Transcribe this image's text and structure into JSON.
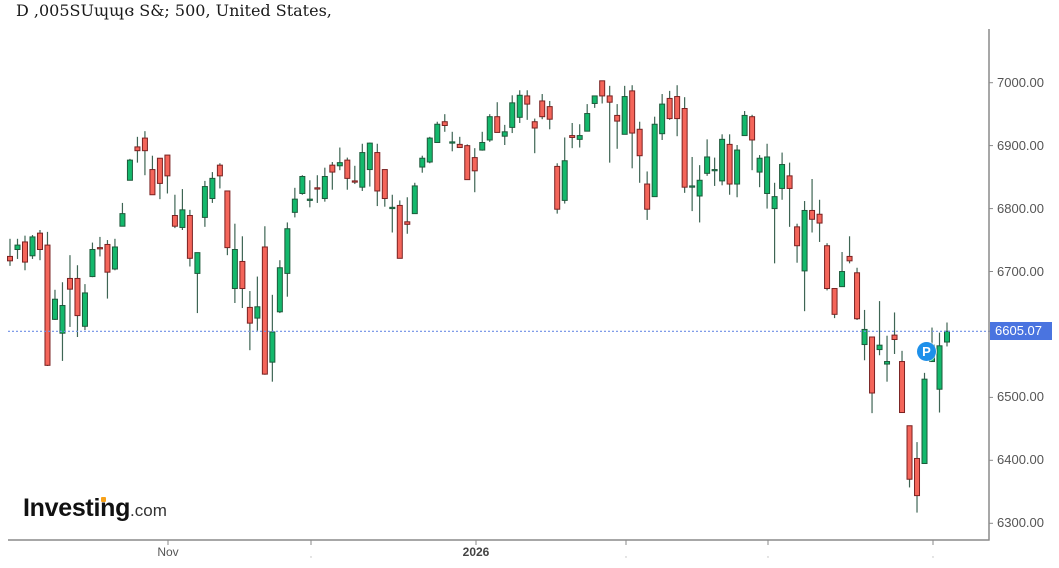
{
  "header": {
    "title": "D ,005SUɰɰɞ S&; 500, United States,"
  },
  "logo": {
    "brand": "Investing",
    "suffix": ".com",
    "accent": "#f7a11a"
  },
  "y_axis": {
    "labels": [
      "7000.00",
      "6900.00",
      "6800.00",
      "6700.00",
      "6500.00",
      "6400.00",
      "6300.00"
    ]
  },
  "x_axis": {
    "labels": [
      "Nov",
      "2026"
    ]
  },
  "price_marker": {
    "label": "6605.07",
    "value": 6605.07,
    "color": "#4a74e0"
  },
  "annotation": {
    "label": "P",
    "color": "#1e90ea"
  },
  "colors": {
    "up_fill": "#14b86c",
    "up_stroke": "#1d5a3b",
    "down_fill": "#f4655a",
    "down_stroke": "#7a2222",
    "wick": "#3e6554",
    "axis": "#8a8a8a",
    "price_line": "#6f8fe6"
  },
  "chart_data": {
    "type": "candlestick",
    "title": "S&P 500, United States, D",
    "xlabel": "",
    "ylabel": "",
    "ylim": [
      6300,
      7000
    ],
    "y_ticks": [
      6300,
      6400,
      6500,
      6600,
      6700,
      6800,
      6900,
      7000
    ],
    "x_tick_labels": [
      "Nov",
      "",
      "2026",
      "",
      "",
      ""
    ],
    "last_price": 6605.07,
    "grid": false,
    "legend": null,
    "ohlc_fields": [
      "open",
      "high",
      "low",
      "close"
    ],
    "candles": [
      [
        6724,
        6752,
        6709,
        6717
      ],
      [
        6735,
        6752,
        6720,
        6742
      ],
      [
        6747,
        6757,
        6702,
        6715
      ],
      [
        6725,
        6758,
        6720,
        6755
      ],
      [
        6761,
        6766,
        6718,
        6735
      ],
      [
        6742,
        6763,
        6550,
        6551
      ],
      [
        6624,
        6671,
        6623,
        6656
      ],
      [
        6602,
        6683,
        6558,
        6646
      ],
      [
        6689,
        6726,
        6612,
        6672
      ],
      [
        6689,
        6710,
        6596,
        6630
      ],
      [
        6613,
        6680,
        6607,
        6666
      ],
      [
        6692,
        6746,
        6691,
        6735
      ],
      [
        6738,
        6755,
        6724,
        6736
      ],
      [
        6743,
        6750,
        6657,
        6699
      ],
      [
        6704,
        6752,
        6702,
        6739
      ],
      [
        6772,
        6809,
        6772,
        6792
      ],
      [
        6845,
        6879,
        6845,
        6877
      ],
      [
        6898,
        6914,
        6873,
        6892
      ],
      [
        6912,
        6923,
        6853,
        6892
      ],
      [
        6862,
        6884,
        6822,
        6822
      ],
      [
        6880,
        6880,
        6815,
        6840
      ],
      [
        6885,
        6885,
        6824,
        6852
      ],
      [
        6789,
        6822,
        6769,
        6772
      ],
      [
        6770,
        6831,
        6766,
        6798
      ],
      [
        6789,
        6798,
        6708,
        6721
      ],
      [
        6697,
        6730,
        6634,
        6730
      ],
      [
        6786,
        6844,
        6771,
        6835
      ],
      [
        6816,
        6858,
        6809,
        6848
      ],
      [
        6869,
        6872,
        6832,
        6852
      ],
      [
        6828,
        6828,
        6726,
        6738
      ],
      [
        6673,
        6776,
        6650,
        6735
      ],
      [
        6716,
        6756,
        6642,
        6673
      ],
      [
        6643,
        6669,
        6575,
        6618
      ],
      [
        6626,
        6692,
        6606,
        6644
      ],
      [
        6739,
        6772,
        6536,
        6537
      ],
      [
        6556,
        6663,
        6525,
        6604
      ],
      [
        6636,
        6718,
        6634,
        6706
      ],
      [
        6697,
        6778,
        6660,
        6768
      ],
      [
        6794,
        6833,
        6786,
        6815
      ],
      [
        6824,
        6853,
        6822,
        6851
      ],
      [
        6813,
        6845,
        6802,
        6815
      ],
      [
        6833,
        6853,
        6809,
        6831
      ],
      [
        6816,
        6865,
        6811,
        6851
      ],
      [
        6869,
        6874,
        6830,
        6858
      ],
      [
        6868,
        6897,
        6861,
        6873
      ],
      [
        6877,
        6881,
        6830,
        6848
      ],
      [
        6844,
        6868,
        6839,
        6842
      ],
      [
        6834,
        6903,
        6828,
        6889
      ],
      [
        6862,
        6905,
        6835,
        6904
      ],
      [
        6889,
        6903,
        6804,
        6828
      ],
      [
        6862,
        6862,
        6803,
        6816
      ],
      [
        6800,
        6822,
        6762,
        6802
      ],
      [
        6805,
        6813,
        6721,
        6721
      ],
      [
        6779,
        6818,
        6760,
        6775
      ],
      [
        6792,
        6841,
        6792,
        6836
      ],
      [
        6866,
        6884,
        6857,
        6880
      ],
      [
        6874,
        6914,
        6872,
        6912
      ],
      [
        6905,
        6938,
        6905,
        6934
      ],
      [
        6938,
        6950,
        6922,
        6932
      ],
      [
        6904,
        6922,
        6891,
        6906
      ],
      [
        6902,
        6914,
        6897,
        6897
      ],
      [
        6900,
        6902,
        6846,
        6846
      ],
      [
        6881,
        6896,
        6826,
        6860
      ],
      [
        6893,
        6922,
        6892,
        6905
      ],
      [
        6909,
        6950,
        6906,
        6946
      ],
      [
        6946,
        6969,
        6921,
        6921
      ],
      [
        6915,
        6933,
        6901,
        6922
      ],
      [
        6929,
        6980,
        6920,
        6968
      ],
      [
        6945,
        6988,
        6936,
        6980
      ],
      [
        6979,
        6988,
        6941,
        6966
      ],
      [
        6938,
        6943,
        6888,
        6928
      ],
      [
        6971,
        6982,
        6942,
        6946
      ],
      [
        6962,
        6971,
        6926,
        6942
      ],
      [
        6867,
        6872,
        6792,
        6799
      ],
      [
        6813,
        6913,
        6808,
        6876
      ],
      [
        6916,
        6936,
        6896,
        6913
      ],
      [
        6910,
        6934,
        6897,
        6916
      ],
      [
        6923,
        6966,
        6923,
        6951
      ],
      [
        6967,
        6979,
        6960,
        6979
      ],
      [
        7003,
        7003,
        6967,
        6979
      ],
      [
        6979,
        6995,
        6873,
        6969
      ],
      [
        6948,
        6966,
        6895,
        6939
      ],
      [
        6918,
        6995,
        6918,
        6978
      ],
      [
        6987,
        6996,
        6864,
        6920
      ],
      [
        6926,
        6938,
        6841,
        6884
      ],
      [
        6839,
        6859,
        6782,
        6799
      ],
      [
        6819,
        6946,
        6819,
        6934
      ],
      [
        6919,
        6982,
        6909,
        6966
      ],
      [
        6975,
        6987,
        6941,
        6943
      ],
      [
        6978,
        6996,
        6915,
        6943
      ],
      [
        6959,
        6977,
        6825,
        6834
      ],
      [
        6834,
        6882,
        6796,
        6836
      ],
      [
        6820,
        6869,
        6778,
        6845
      ],
      [
        6856,
        6910,
        6852,
        6882
      ],
      [
        6861,
        6881,
        6836,
        6862
      ],
      [
        6844,
        6918,
        6837,
        6910
      ],
      [
        6902,
        6918,
        6822,
        6839
      ],
      [
        6839,
        6901,
        6818,
        6893
      ],
      [
        6916,
        6955,
        6916,
        6948
      ],
      [
        6946,
        6949,
        6861,
        6909
      ],
      [
        6858,
        6885,
        6834,
        6880
      ],
      [
        6824,
        6903,
        6800,
        6882
      ],
      [
        6800,
        6841,
        6713,
        6819
      ],
      [
        6832,
        6889,
        6814,
        6870
      ],
      [
        6852,
        6873,
        6771,
        6832
      ],
      [
        6771,
        6776,
        6714,
        6741
      ],
      [
        6701,
        6812,
        6637,
        6797
      ],
      [
        6797,
        6847,
        6762,
        6783
      ],
      [
        6791,
        6814,
        6747,
        6777
      ],
      [
        6741,
        6745,
        6670,
        6673
      ],
      [
        6673,
        6673,
        6626,
        6632
      ],
      [
        6676,
        6731,
        6676,
        6700
      ],
      [
        6724,
        6756,
        6713,
        6717
      ],
      [
        6698,
        6706,
        6623,
        6625
      ],
      [
        6584,
        6639,
        6559,
        6608
      ],
      [
        6596,
        6596,
        6475,
        6507
      ],
      [
        6576,
        6653,
        6567,
        6583
      ],
      [
        6553,
        6598,
        6525,
        6557
      ],
      [
        6599,
        6635,
        6569,
        6592
      ],
      [
        6557,
        6574,
        6476,
        6476
      ],
      [
        6455,
        6455,
        6357,
        6370
      ],
      [
        6403,
        6429,
        6317,
        6344
      ],
      [
        6395,
        6539,
        6395,
        6529
      ],
      [
        6557,
        6611,
        6557,
        6583
      ],
      [
        6513,
        6603,
        6476,
        6582
      ],
      [
        6588,
        6619,
        6581,
        6605.07
      ]
    ]
  }
}
